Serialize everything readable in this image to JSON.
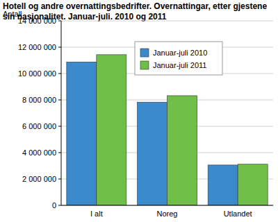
{
  "chart_data": {
    "type": "bar",
    "title": "Hotell og andre overnattingsbedrifter. Overnattingar, etter gjestene sin nasjonalitet. Januar-juli. 2010 og 2011",
    "y_label": "Antall",
    "categories": [
      "I alt",
      "Noreg",
      "Utlandet"
    ],
    "series": [
      {
        "name": "Januar-juli 2010",
        "color": "#3b8bcc",
        "values": [
          10880000,
          7830000,
          3060000
        ]
      },
      {
        "name": "Januar-juli 2011",
        "color": "#6fbe48",
        "values": [
          11430000,
          8320000,
          3120000
        ]
      }
    ],
    "ylim": [
      0,
      14000000
    ],
    "yticks": [
      0,
      {
        "value": 2000000,
        "label": "2 000 000"
      },
      {
        "value": 4000000,
        "label": "4 000 000"
      },
      {
        "value": 6000000,
        "label": "6 000 000"
      },
      {
        "value": 8000000,
        "label": "8 000 000"
      },
      {
        "value": 10000000,
        "label": "10 000 000"
      },
      {
        "value": 12000000,
        "label": "12 000 000"
      },
      {
        "value": 14000000,
        "label": "14 000 000"
      }
    ],
    "grid": true,
    "legend": "top"
  }
}
